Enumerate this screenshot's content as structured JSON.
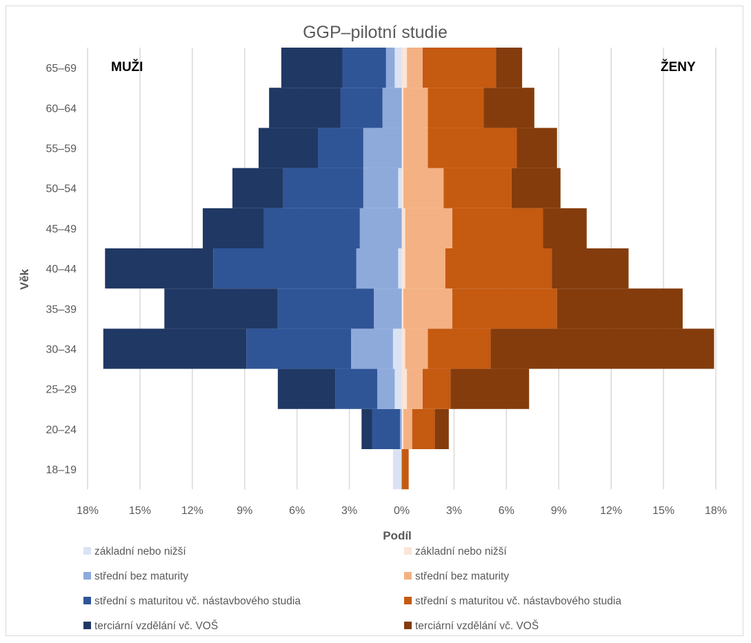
{
  "chart_data": {
    "type": "bar",
    "orientation": "horizontal-population-pyramid",
    "title": "GGP–pilotní studie",
    "xlabel": "Podíl",
    "ylabel": "Věk",
    "xlim": [
      -18,
      18
    ],
    "x_ticks": [
      "18%",
      "15%",
      "12%",
      "9%",
      "6%",
      "3%",
      "0%",
      "3%",
      "6%",
      "9%",
      "12%",
      "15%",
      "18%"
    ],
    "grid": true,
    "categories": [
      "18–19",
      "20–24",
      "25–29",
      "30–34",
      "35–39",
      "40–44",
      "45–49",
      "50–54",
      "55–59",
      "60–64",
      "65–69"
    ],
    "panels": {
      "left_label": "MUŽI",
      "right_label": "ŽENY"
    },
    "series": [
      {
        "name": "základní nebo nižší",
        "side": "left",
        "color": "#dae3f3",
        "values": [
          0.5,
          0.0,
          0.4,
          0.5,
          0.0,
          0.2,
          0.0,
          0.2,
          0.0,
          0.0,
          0.4
        ]
      },
      {
        "name": "střední bez maturity",
        "side": "left",
        "color": "#8eaadb",
        "values": [
          0.0,
          0.1,
          1.0,
          2.4,
          1.6,
          2.4,
          2.4,
          2.0,
          2.2,
          1.1,
          0.5
        ]
      },
      {
        "name": "střední s maturitou vč. nástavbového studia",
        "side": "left",
        "color": "#2f5597",
        "values": [
          0.0,
          1.6,
          2.4,
          6.0,
          5.5,
          8.2,
          5.5,
          4.6,
          2.6,
          2.4,
          2.5
        ]
      },
      {
        "name": "terciární vzdělání vč. VOŠ",
        "side": "left",
        "color": "#203864",
        "values": [
          0.0,
          0.6,
          3.3,
          8.2,
          6.5,
          6.2,
          3.5,
          2.9,
          3.4,
          4.1,
          3.5
        ]
      },
      {
        "name": "základní nebo nižší",
        "side": "right",
        "color": "#fbe5d6",
        "values": [
          0.0,
          0.1,
          0.3,
          0.2,
          0.1,
          0.2,
          0.2,
          0.1,
          0.1,
          0.1,
          0.3
        ]
      },
      {
        "name": "střední bez maturity",
        "side": "right",
        "color": "#f4b183",
        "values": [
          0.0,
          0.5,
          0.9,
          1.3,
          2.8,
          2.3,
          2.7,
          2.3,
          1.4,
          1.4,
          0.9
        ]
      },
      {
        "name": "střední s maturitou vč. nástavbového studia",
        "side": "right",
        "color": "#c55a11",
        "values": [
          0.4,
          1.3,
          1.6,
          3.6,
          6.0,
          6.1,
          5.2,
          3.9,
          5.1,
          3.2,
          4.2
        ]
      },
      {
        "name": "terciární vzdělání vč. VOŠ",
        "side": "right",
        "color": "#843c0c",
        "values": [
          0.0,
          0.8,
          4.5,
          12.8,
          7.2,
          4.4,
          2.5,
          2.8,
          2.3,
          2.9,
          1.5
        ]
      }
    ],
    "legend_position": "bottom"
  }
}
